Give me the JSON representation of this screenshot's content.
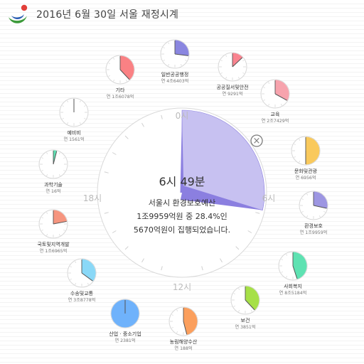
{
  "header": {
    "title": "2016년 6월 30일 서울 재정시계"
  },
  "clock": {
    "hour_labels": {
      "top": "0시",
      "right": "6시",
      "bottom": "12시",
      "left": "18시"
    },
    "time": "6시 49분",
    "message_lines": [
      "서울시 환경보호예산",
      "1조9959억원 중 28.4%인",
      "5670억원이 집행되었습니다."
    ],
    "main_progress": 0.284,
    "main_color": "#c7c1f1",
    "main_hand_color": "#8b7fe0"
  },
  "close_label": "×",
  "categories": [
    {
      "label": "일반공공행정",
      "value": "연 4조6403억",
      "progress": 0.27,
      "color": "#8a86e0"
    },
    {
      "label": "공공질서및안전",
      "value": "연 9291억",
      "progress": 0.13,
      "color": "#f9838f"
    },
    {
      "label": "교육",
      "value": "연 2조7429억",
      "progress": 0.33,
      "color": "#f7a3ad"
    },
    {
      "label": "문화및관광",
      "value": "연 6956억",
      "progress": 0.5,
      "color": "#f9c95c"
    },
    {
      "label": "환경보호",
      "value": "연 1조9959억",
      "progress": 0.284,
      "color": "#9d96e2"
    },
    {
      "label": "사회복지",
      "value": "연 8조5184억",
      "progress": 0.45,
      "color": "#5ee2b2"
    },
    {
      "label": "보건",
      "value": "연 3851억",
      "progress": 0.38,
      "color": "#a6e047"
    },
    {
      "label": "농림해양수산",
      "value": "연 188억",
      "progress": 0.46,
      "color": "#fb9f5d"
    },
    {
      "label": "산업 · 중소기업",
      "value": "연 2381억",
      "progress": 1.0,
      "color": "#6fb2fb"
    },
    {
      "label": "수송및교통",
      "value": "연 3조8778억",
      "progress": 0.35,
      "color": "#8ad8f7"
    },
    {
      "label": "국토및지역개발",
      "value": "연 1조6965억",
      "progress": 0.22,
      "color": "#f6957f"
    },
    {
      "label": "과학기술",
      "value": "연 16억",
      "progress": 0.04,
      "color": "#5fe0b3"
    },
    {
      "label": "예비비",
      "value": "연 1561억",
      "progress": 0.0,
      "color": "#cccccc"
    },
    {
      "label": "기타",
      "value": "연 1조6078억",
      "progress": 0.38,
      "color": "#fa8184"
    }
  ]
}
